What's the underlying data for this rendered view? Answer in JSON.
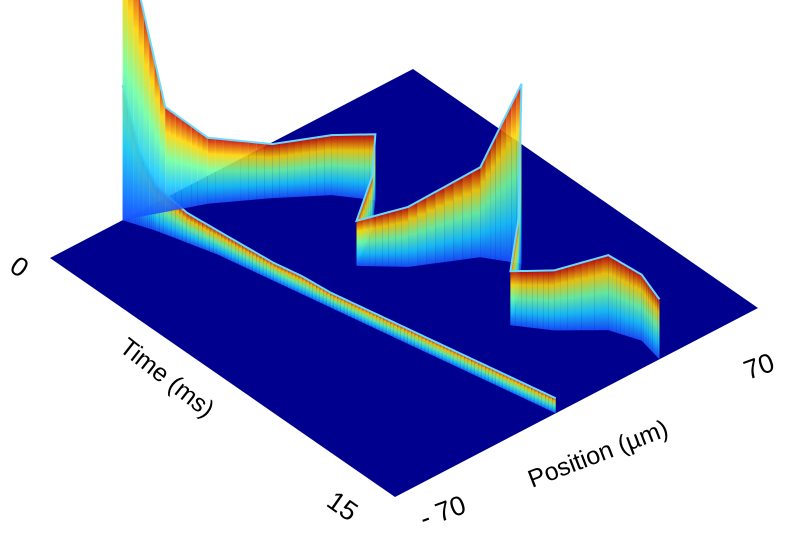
{
  "chart_data": {
    "type": "surface",
    "title": "",
    "x_axis": {
      "label": "Time (ms)",
      "range": [
        0,
        15
      ],
      "ticks": [
        "0",
        "15"
      ]
    },
    "y_axis": {
      "label": "Position (µm)",
      "range": [
        -70,
        70
      ],
      "ticks": [
        "- 70",
        "70"
      ]
    },
    "colormap": "jet",
    "surface_color": "#00008f",
    "grid": false,
    "legend": "none",
    "ridges": [
      {
        "t": [
          0,
          0.5,
          1,
          2,
          3,
          4,
          5,
          6,
          7,
          8,
          9,
          10,
          11,
          12,
          13,
          14,
          15
        ],
        "pos": [
          -42,
          -40,
          -38,
          -35,
          -32,
          -30,
          -28,
          -26,
          -24,
          -22,
          -20,
          -18,
          -16,
          -14,
          -12,
          -10,
          -8
        ],
        "height": [
          0.45,
          0.25,
          0.15,
          0.1,
          0.08,
          0.07,
          0.06,
          0.06,
          0.05,
          0.05,
          0.05,
          0.05,
          0.05,
          0.05,
          0.05,
          0.05,
          0.05
        ]
      },
      {
        "t": [
          0,
          0.5,
          1,
          2,
          3,
          4,
          5,
          6,
          7,
          8,
          9,
          10,
          11,
          12,
          13,
          14,
          15
        ],
        "pos": [
          -42,
          -30,
          -18,
          -2,
          12,
          20,
          10,
          -5,
          6,
          25,
          32,
          22,
          10,
          18,
          30,
          34,
          32
        ],
        "height": [
          1.0,
          0.35,
          0.22,
          0.18,
          0.2,
          0.22,
          0.18,
          0.15,
          0.2,
          0.3,
          0.6,
          0.25,
          0.18,
          0.2,
          0.25,
          0.22,
          0.2
        ]
      }
    ]
  }
}
